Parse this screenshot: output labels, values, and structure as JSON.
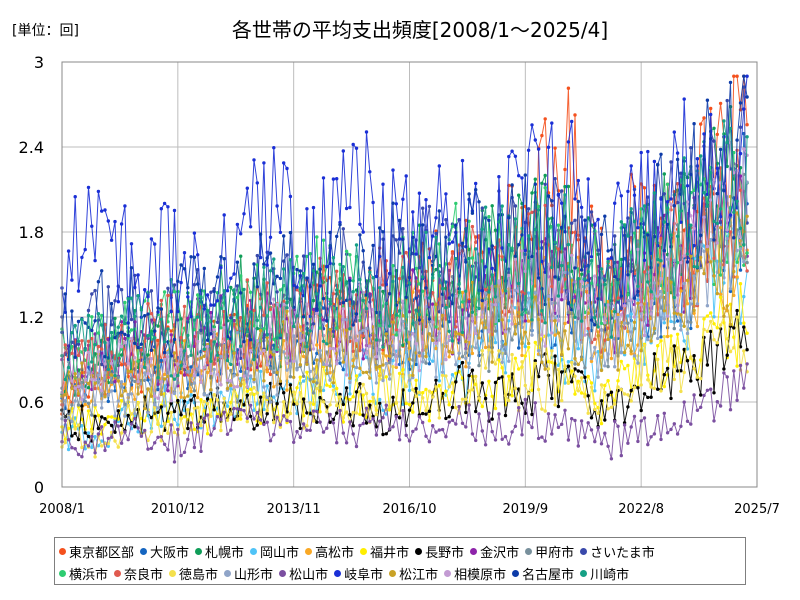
{
  "unit_label": "[単位：回]",
  "title": "各世帯の平均支出頻度[2008/1～2025/4]",
  "chart_data": {
    "type": "line",
    "title": "各世帯の平均支出頻度[2008/1～2025/4]",
    "ylabel": "[単位：回]",
    "xlabel": "",
    "ylim": [
      0,
      3
    ],
    "yticks": [
      "0",
      "0.6",
      "1.2",
      "1.8",
      "2.4",
      "3"
    ],
    "xticks": [
      "2008/1",
      "2010/12",
      "2013/11",
      "2016/10",
      "2019/9",
      "2022/8",
      "2025/7"
    ],
    "x_start": "2008/1",
    "x_end": "2025/4",
    "grid": true,
    "legend_position": "bottom",
    "series": [
      {
        "name": "東京都区部",
        "color": "#f4511e",
        "values": [
          0.6,
          0.85,
          0.9,
          1.0,
          0.95,
          1.1,
          1.0,
          1.2,
          1.3,
          1.2,
          1.4,
          1.5,
          1.6,
          1.9,
          2.3,
          1.5,
          1.8,
          1.9,
          2.1,
          2.5
        ]
      },
      {
        "name": "大阪市",
        "color": "#1565c0",
        "values": [
          0.7,
          0.8,
          0.9,
          0.85,
          1.0,
          0.95,
          1.0,
          1.1,
          1.05,
          1.2,
          1.1,
          1.3,
          1.2,
          1.4,
          1.3,
          1.2,
          1.4,
          1.5,
          1.6,
          2.0
        ]
      },
      {
        "name": "札幌市",
        "color": "#0f9d58",
        "values": [
          0.7,
          0.9,
          1.0,
          1.1,
          1.2,
          1.3,
          1.1,
          1.4,
          1.3,
          1.2,
          1.5,
          1.4,
          1.6,
          1.7,
          1.8,
          1.4,
          1.6,
          1.8,
          2.0,
          2.2
        ]
      },
      {
        "name": "岡山市",
        "color": "#4fc3f7",
        "values": [
          0.4,
          0.3,
          0.5,
          0.6,
          0.5,
          0.7,
          0.6,
          0.7,
          0.8,
          0.7,
          0.9,
          0.8,
          1.0,
          1.1,
          1.0,
          0.9,
          1.1,
          1.3,
          1.4,
          1.6
        ]
      },
      {
        "name": "高松市",
        "color": "#f9a825",
        "values": [
          0.6,
          0.7,
          0.8,
          0.9,
          0.8,
          1.0,
          0.9,
          1.0,
          1.1,
          1.0,
          1.2,
          1.1,
          1.3,
          1.2,
          1.4,
          1.1,
          1.3,
          1.5,
          1.6,
          1.8
        ]
      },
      {
        "name": "福井市",
        "color": "#ffee00",
        "values": [
          0.4,
          0.5,
          0.5,
          0.6,
          0.5,
          0.6,
          0.5,
          0.7,
          0.6,
          0.7,
          0.6,
          0.8,
          0.7,
          0.8,
          0.9,
          0.6,
          0.8,
          0.9,
          1.0,
          1.2
        ]
      },
      {
        "name": "長野市",
        "color": "#000000",
        "values": [
          0.5,
          0.4,
          0.5,
          0.5,
          0.6,
          0.5,
          0.6,
          0.5,
          0.6,
          0.5,
          0.6,
          0.7,
          0.6,
          0.7,
          0.8,
          0.5,
          0.7,
          0.8,
          0.9,
          1.1
        ]
      },
      {
        "name": "金沢市",
        "color": "#8e24aa",
        "values": [
          0.8,
          0.9,
          1.0,
          0.9,
          1.1,
          1.0,
          1.2,
          1.1,
          1.2,
          1.1,
          1.3,
          1.2,
          1.4,
          1.3,
          1.5,
          1.2,
          1.4,
          1.6,
          1.7,
          1.9
        ]
      },
      {
        "name": "甲府市",
        "color": "#78909c",
        "values": [
          0.6,
          0.7,
          0.8,
          0.8,
          0.9,
          0.8,
          1.0,
          0.9,
          1.0,
          1.1,
          1.0,
          1.2,
          1.1,
          1.3,
          1.2,
          1.1,
          1.4,
          1.5,
          1.7,
          1.9
        ]
      },
      {
        "name": "さいたま市",
        "color": "#3949ab",
        "values": [
          1.0,
          1.1,
          1.2,
          1.1,
          1.3,
          1.2,
          1.4,
          1.3,
          1.5,
          1.4,
          1.6,
          1.5,
          1.7,
          1.6,
          1.8,
          1.5,
          1.7,
          1.9,
          2.1,
          2.3
        ]
      },
      {
        "name": "横浜市",
        "color": "#2ecc71",
        "values": [
          0.9,
          1.0,
          1.1,
          1.2,
          1.1,
          1.3,
          1.2,
          1.4,
          1.3,
          1.5,
          1.4,
          1.6,
          1.5,
          1.7,
          1.6,
          1.4,
          1.6,
          1.8,
          1.9,
          2.1
        ]
      },
      {
        "name": "奈良市",
        "color": "#e05a4f",
        "values": [
          0.8,
          0.9,
          1.0,
          1.1,
          1.0,
          1.2,
          1.1,
          1.3,
          1.2,
          1.4,
          1.3,
          1.5,
          1.4,
          1.6,
          1.5,
          1.3,
          1.5,
          1.7,
          1.8,
          2.0
        ]
      },
      {
        "name": "徳島市",
        "color": "#f4e04d",
        "values": [
          0.4,
          0.3,
          0.5,
          0.4,
          0.5,
          0.6,
          0.5,
          0.6,
          0.5,
          0.7,
          0.6,
          0.7,
          0.8,
          0.7,
          0.8,
          0.6,
          0.8,
          0.9,
          1.0,
          1.1
        ]
      },
      {
        "name": "山形市",
        "color": "#8fa4c8",
        "values": [
          0.6,
          0.7,
          0.6,
          0.8,
          0.7,
          0.9,
          0.8,
          0.9,
          1.0,
          0.9,
          1.1,
          1.0,
          1.2,
          1.1,
          1.3,
          1.0,
          1.2,
          1.4,
          1.5,
          1.7
        ]
      },
      {
        "name": "松山市",
        "color": "#7b4fa0",
        "values": [
          0.4,
          0.3,
          0.4,
          0.3,
          0.4,
          0.5,
          0.4,
          0.5,
          0.4,
          0.5,
          0.4,
          0.5,
          0.4,
          0.5,
          0.4,
          0.3,
          0.4,
          0.5,
          0.6,
          0.7
        ]
      },
      {
        "name": "岐阜市",
        "color": "#1a2fd6",
        "values": [
          1.6,
          1.8,
          1.5,
          1.7,
          1.4,
          1.9,
          2.0,
          1.6,
          2.1,
          1.8,
          1.7,
          1.9,
          1.8,
          2.0,
          2.2,
          1.6,
          1.9,
          2.1,
          2.3,
          2.5
        ]
      },
      {
        "name": "松江市",
        "color": "#c9a227",
        "values": [
          0.7,
          0.8,
          0.7,
          0.9,
          0.8,
          0.9,
          1.0,
          0.9,
          1.0,
          1.1,
          1.0,
          1.1,
          1.2,
          1.1,
          1.2,
          1.0,
          1.2,
          1.3,
          1.4,
          1.6
        ]
      },
      {
        "name": "相模原市",
        "color": "#c39bd3",
        "values": [
          0.7,
          0.8,
          0.9,
          0.8,
          1.0,
          0.9,
          1.1,
          1.0,
          1.1,
          1.2,
          1.1,
          1.3,
          1.2,
          1.4,
          1.3,
          1.2,
          1.4,
          1.6,
          1.8,
          2.0
        ]
      },
      {
        "name": "名古屋市",
        "color": "#0d3ba8",
        "values": [
          1.1,
          1.2,
          1.3,
          1.2,
          1.4,
          1.3,
          1.5,
          1.4,
          1.5,
          1.6,
          1.5,
          1.7,
          1.6,
          1.8,
          1.7,
          1.5,
          1.8,
          2.0,
          2.2,
          2.4
        ]
      },
      {
        "name": "川崎市",
        "color": "#16a085",
        "values": [
          0.9,
          1.0,
          1.1,
          1.0,
          1.2,
          1.1,
          1.3,
          1.2,
          1.4,
          1.3,
          1.5,
          1.4,
          1.6,
          1.5,
          1.7,
          1.4,
          1.6,
          1.8,
          2.0,
          2.2
        ]
      }
    ]
  }
}
